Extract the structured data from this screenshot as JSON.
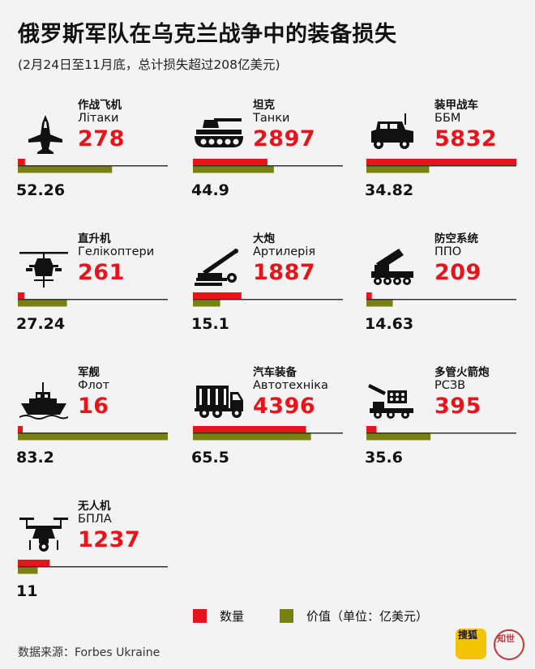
{
  "header": {
    "title": "俄罗斯军队在乌克兰战争中的装备损失",
    "subtitle": "(2月24日至11月底，总计损失超过208亿美元)"
  },
  "legend": {
    "count_label": "数量",
    "value_label": "价值（单位：亿美元）"
  },
  "source": "数据来源：Forbes Ukraine",
  "logos": {
    "sohu": "搜狐",
    "zhishi": "知世"
  },
  "colors": {
    "count": "#e8141c",
    "value": "#7b8012",
    "axis": "#333333"
  },
  "chart_data": {
    "type": "bar",
    "categories": [
      "作战飞机",
      "坦克",
      "装甲战车",
      "直升机",
      "大炮",
      "防空系统",
      "军舰",
      "汽车装备",
      "多管火箭炮",
      "无人机"
    ],
    "categories_ua": [
      "Літаки",
      "Танки",
      "ББМ",
      "Гелікоптери",
      "Артилерія",
      "ППО",
      "Флот",
      "Автотехніка",
      "РСЗВ",
      "БПЛА"
    ],
    "series": [
      {
        "name": "数量",
        "values": [
          278,
          2897,
          5832,
          261,
          1887,
          209,
          16,
          4396,
          395,
          1237
        ]
      },
      {
        "name": "价值（单位：亿美元）",
        "values": [
          52.26,
          44.9,
          34.82,
          27.24,
          15.1,
          14.63,
          83.2,
          65.5,
          35.6,
          11
        ]
      }
    ],
    "icons": [
      "fighter-jet-icon",
      "tank-icon",
      "armored-vehicle-icon",
      "helicopter-icon",
      "artillery-icon",
      "air-defense-icon",
      "warship-icon",
      "truck-icon",
      "rocket-launcher-icon",
      "drone-icon"
    ],
    "scale": {
      "count_max": 5832,
      "value_max": 83.2
    }
  }
}
